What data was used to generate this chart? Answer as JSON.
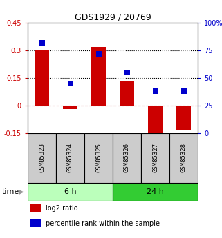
{
  "title": "GDS1929 / 20769",
  "samples": [
    "GSM85323",
    "GSM85324",
    "GSM85325",
    "GSM85326",
    "GSM85327",
    "GSM85328"
  ],
  "log2_ratio": [
    0.3,
    -0.02,
    0.32,
    0.13,
    -0.18,
    -0.13
  ],
  "percentile_rank": [
    82,
    45,
    72,
    55,
    38,
    38
  ],
  "left_ylim": [
    -0.15,
    0.45
  ],
  "right_ylim": [
    0,
    100
  ],
  "left_yticks": [
    -0.15,
    0,
    0.15,
    0.3,
    0.45
  ],
  "left_yticklabels": [
    "-0.15",
    "0",
    "0.15",
    "0.3",
    "0.45"
  ],
  "right_yticks": [
    0,
    25,
    50,
    75,
    100
  ],
  "right_yticklabels": [
    "0",
    "25",
    "50",
    "75",
    "100%"
  ],
  "hlines": [
    0.15,
    0.3
  ],
  "hline_zero": 0.0,
  "bar_color": "#cc0000",
  "scatter_color": "#0000cc",
  "time_groups": [
    {
      "label": "6 h",
      "start": 0,
      "end": 3,
      "color": "#bbffbb"
    },
    {
      "label": "24 h",
      "start": 3,
      "end": 6,
      "color": "#33cc33"
    }
  ],
  "bar_width": 0.5,
  "scatter_size": 28,
  "legend_items": [
    {
      "color": "#cc0000",
      "label": "log2 ratio"
    },
    {
      "color": "#0000cc",
      "label": "percentile rank within the sample"
    }
  ]
}
